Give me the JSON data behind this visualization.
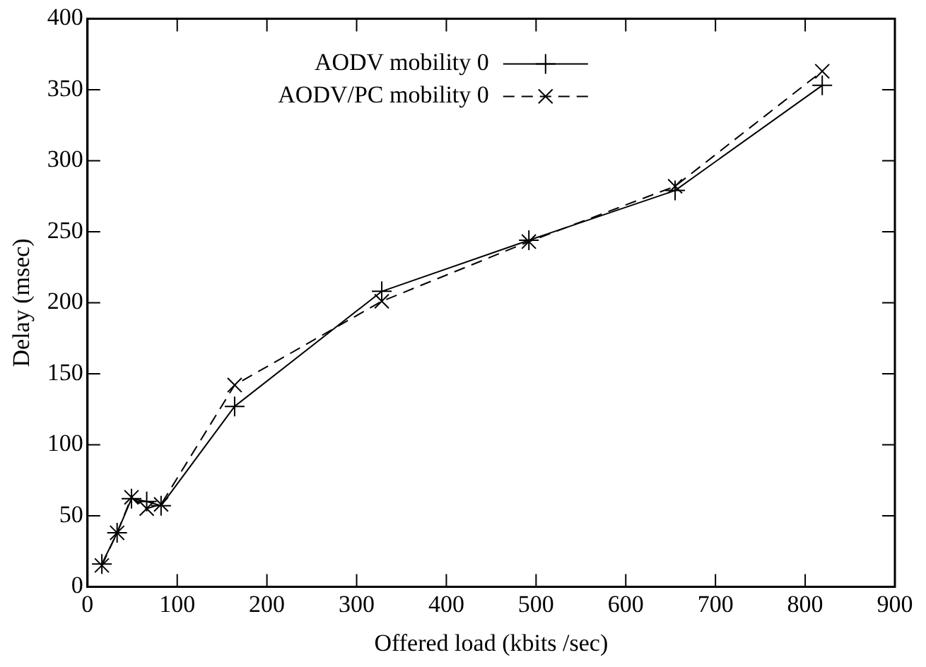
{
  "chart_data": {
    "type": "line",
    "xlabel": "Offered load (kbits /sec)",
    "ylabel": "Delay (msec)",
    "xlim": [
      0,
      900
    ],
    "xticks": [
      0,
      100,
      200,
      300,
      400,
      500,
      600,
      700,
      800,
      900
    ],
    "ylim": [
      0,
      400
    ],
    "yticks": [
      0,
      50,
      100,
      150,
      200,
      250,
      300,
      350,
      400
    ],
    "legend": "top left",
    "grid": false,
    "series": [
      {
        "name": "AODV mobility 0",
        "color": "#000000",
        "marker": "plus",
        "line_style": "solid",
        "x": [
          16,
          33,
          49,
          66,
          82,
          164,
          328,
          492,
          655,
          819
        ],
        "values": [
          16,
          38,
          62,
          60,
          57,
          127,
          208,
          244,
          279,
          353
        ]
      },
      {
        "name": "AODV/PC mobility 0",
        "color": "#000000",
        "marker": "cross",
        "line_style": "dashed",
        "x": [
          16,
          33,
          49,
          66,
          82,
          164,
          328,
          492,
          655,
          819
        ],
        "values": [
          15,
          38,
          63,
          55,
          58,
          142,
          201,
          243,
          282,
          363
        ]
      }
    ]
  }
}
